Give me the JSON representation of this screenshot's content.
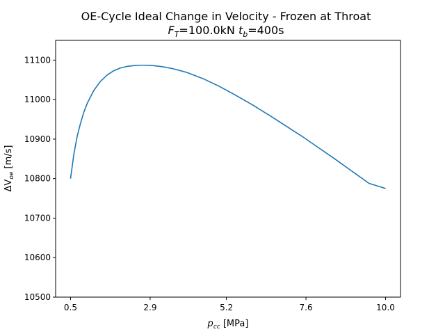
{
  "chart_data": {
    "type": "line",
    "title_line1": "OE-Cycle Ideal Change in Velocity - Frozen at Throat",
    "title_line2": {
      "F": "F",
      "F_sub": "T",
      "F_rest": "=100.0kN ",
      "t": "t",
      "t_sub": "b",
      "t_rest": "=400s"
    },
    "xlabel": {
      "main": "p",
      "sub": "cc",
      "unit": " [MPa]"
    },
    "ylabel": {
      "delta": "ΔV",
      "sub": "oe",
      "unit": " [m/s]"
    },
    "xlim": [
      0.05,
      10.45
    ],
    "ylim": [
      10500,
      11150
    ],
    "x_ticks": [
      0.5,
      2.9,
      5.2,
      7.6,
      10.0
    ],
    "x_tick_labels": [
      "0.5",
      "2.9",
      "5.2",
      "7.6",
      "10.0"
    ],
    "y_ticks": [
      10500,
      10600,
      10700,
      10800,
      10900,
      11000,
      11100
    ],
    "y_tick_labels": [
      "10500",
      "10600",
      "10700",
      "10800",
      "10900",
      "11000",
      "11100"
    ],
    "grid": false,
    "series": [
      {
        "color": "#1f77b4",
        "x": [
          0.5,
          0.6,
          0.7,
          0.8,
          0.9,
          1.0,
          1.2,
          1.4,
          1.6,
          1.8,
          2.0,
          2.2,
          2.4,
          2.6,
          2.8,
          3.0,
          3.3,
          3.6,
          4.0,
          4.5,
          5.0,
          5.5,
          6.0,
          6.5,
          7.0,
          7.5,
          8.0,
          8.5,
          9.0,
          9.5,
          10.0
        ],
        "y": [
          10800,
          10862,
          10907,
          10940,
          10968,
          10990,
          11023,
          11046,
          11062,
          11073,
          11080,
          11084,
          11086,
          11087,
          11087,
          11086,
          11083,
          11078,
          11069,
          11053,
          11033,
          11010,
          10986,
          10960,
          10933,
          10906,
          10877,
          10848,
          10818,
          10788,
          10775
        ]
      }
    ]
  }
}
